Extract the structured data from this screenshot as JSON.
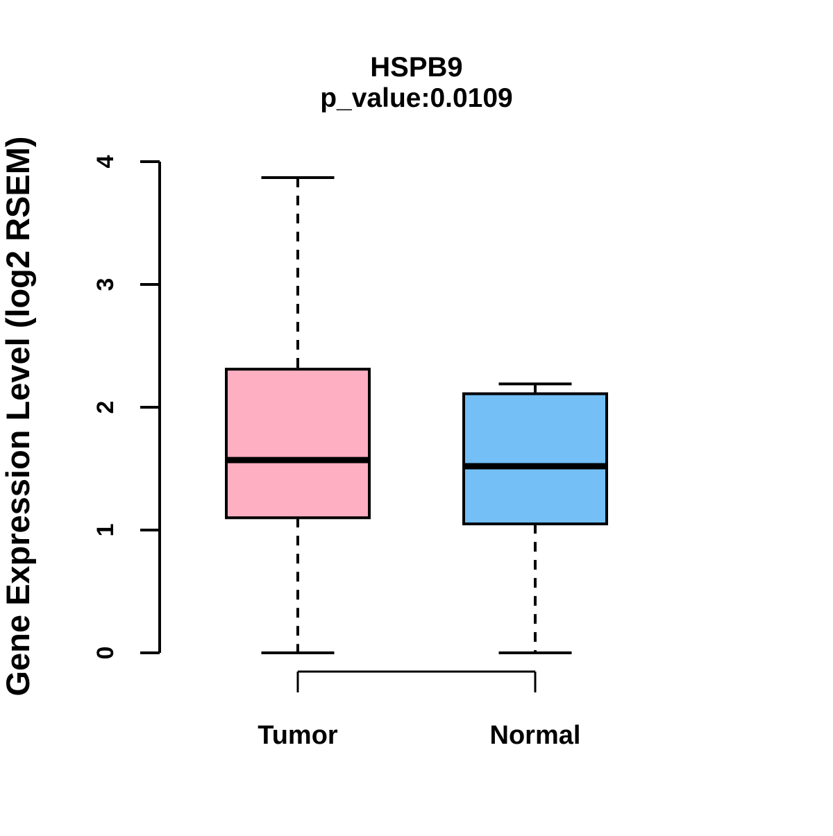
{
  "figure": {
    "title": "HSPB9",
    "subtitle": "p_value:0.0109",
    "ylabel": "Gene Expression Level (log2 RSEM)"
  },
  "chart_data": {
    "type": "box",
    "title": "HSPB9",
    "subtitle": "p_value:0.0109",
    "xlabel": "",
    "ylabel": "Gene Expression Level (log2 RSEM)",
    "ylim": [
      0,
      4
    ],
    "yticks": [
      0,
      1,
      2,
      3,
      4
    ],
    "categories": [
      "Tumor",
      "Normal"
    ],
    "series": [
      {
        "name": "Tumor",
        "fill_color": "#FFAFC2",
        "whisker_low": 0,
        "q1": 1.1,
        "median": 1.57,
        "q3": 2.31,
        "whisker_high": 3.87
      },
      {
        "name": "Normal",
        "fill_color": "#73BFF6",
        "whisker_low": 0,
        "q1": 1.05,
        "median": 1.52,
        "q3": 2.11,
        "whisker_high": 2.19
      }
    ],
    "grid": false,
    "legend_position": "none",
    "stroke_color": "#000000"
  }
}
